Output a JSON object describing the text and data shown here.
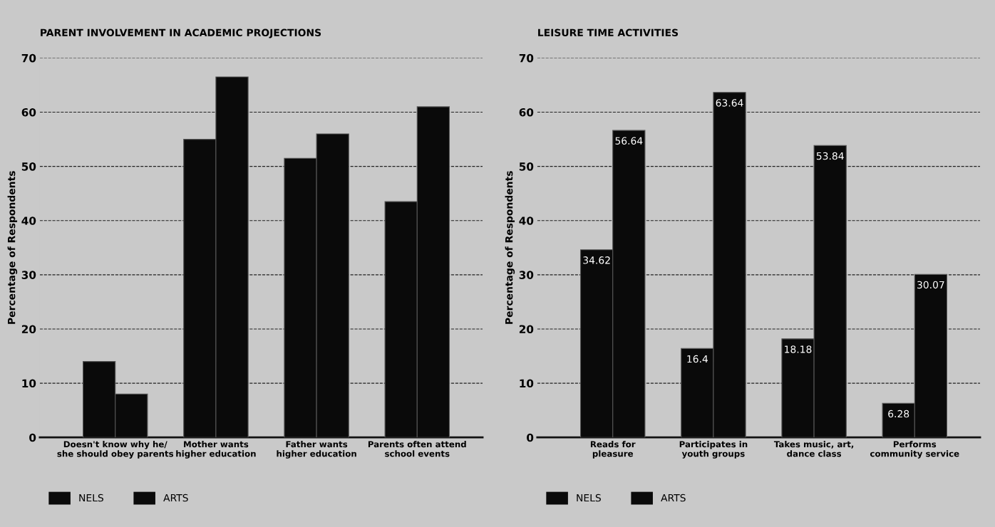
{
  "chart_data": [
    {
      "type": "bar",
      "title": "PARENT INVOLVEMENT IN ACADEMIC PROJECTIONS",
      "ylabel": "Percentage of Respondents",
      "categories": [
        "Doesn't know why he/\nshe should obey parents",
        "Mother wants\nhigher education",
        "Father wants\nhigher education",
        "Parents often attend\nschool events"
      ],
      "series": [
        {
          "name": "NELS",
          "color": "#0a0a0a",
          "values": [
            14,
            55,
            51.5,
            43.5
          ]
        },
        {
          "name": "ARTS",
          "color": "#0a0a0a",
          "values": [
            8,
            66.5,
            56,
            61
          ]
        }
      ],
      "ylim": [
        0,
        70
      ],
      "yticks": [
        0,
        10,
        20,
        30,
        40,
        50,
        60,
        70
      ],
      "grid": "y",
      "legend": "bottom left"
    },
    {
      "type": "bar",
      "title": "LEISURE TIME ACTIVITIES",
      "ylabel": "Percentage of Respondents",
      "categories": [
        "Reads for\npleasure",
        "Participates in\nyouth groups",
        "Takes music, art,\ndance class",
        "Performs\ncommunity service"
      ],
      "series": [
        {
          "name": "NELS",
          "color": "#0a0a0a",
          "values": [
            34.62,
            16.4,
            18.18,
            6.28
          ],
          "value_labels": [
            "34.62",
            "16.4",
            "18.18",
            "6.28"
          ]
        },
        {
          "name": "ARTS",
          "color": "#0a0a0a",
          "values": [
            56.64,
            63.64,
            53.84,
            30.07
          ],
          "value_labels": [
            "56.64",
            "63.64",
            "53.84",
            "30.07"
          ]
        }
      ],
      "ylim": [
        0,
        70
      ],
      "yticks": [
        0,
        10,
        20,
        30,
        40,
        50,
        60,
        70
      ],
      "grid": "y",
      "legend": "bottom left"
    }
  ]
}
